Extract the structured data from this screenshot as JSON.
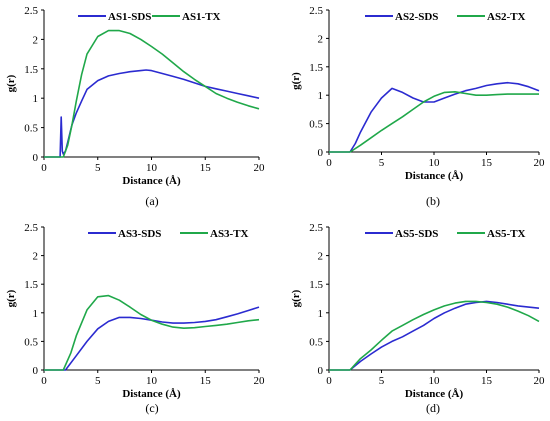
{
  "colors": {
    "sds": "#2b2bd0",
    "tx": "#20a84a"
  },
  "chart_data": [
    {
      "type": "line",
      "caption": "(a)",
      "xlabel": "Distance (Å)",
      "ylabel": "g(r)",
      "xlim": [
        0,
        20
      ],
      "ylim": [
        0,
        2.5
      ],
      "xticks": [
        "0",
        "5",
        "10",
        "15",
        "20"
      ],
      "yticks": [
        "0",
        "0.5",
        "1",
        "1.5",
        "2",
        "2.5"
      ],
      "grid": false,
      "legend": "top",
      "series": [
        {
          "name": "AS1-SDS",
          "color": "sds",
          "x": [
            0,
            1.5,
            1.6,
            1.7,
            1.8,
            2.0,
            2.2,
            2.4,
            2.6,
            3.0,
            3.5,
            4,
            5,
            6,
            7,
            8,
            9,
            9.5,
            10,
            11,
            12,
            13,
            14,
            15,
            16,
            17,
            18,
            19,
            20
          ],
          "y": [
            0,
            0,
            0.68,
            0.1,
            0.05,
            0.1,
            0.25,
            0.4,
            0.55,
            0.75,
            0.95,
            1.15,
            1.3,
            1.38,
            1.42,
            1.45,
            1.47,
            1.48,
            1.47,
            1.42,
            1.37,
            1.32,
            1.26,
            1.2,
            1.16,
            1.12,
            1.08,
            1.04,
            1.0
          ]
        },
        {
          "name": "AS1-TX",
          "color": "tx",
          "x": [
            0,
            1.8,
            2.2,
            2.6,
            3.0,
            3.5,
            4,
            5,
            6,
            7,
            8,
            9,
            10,
            11,
            12,
            13,
            14,
            15,
            16,
            17,
            18,
            19,
            20
          ],
          "y": [
            0,
            0,
            0.2,
            0.55,
            0.95,
            1.4,
            1.75,
            2.05,
            2.15,
            2.15,
            2.1,
            2.0,
            1.88,
            1.75,
            1.6,
            1.45,
            1.32,
            1.2,
            1.08,
            1.0,
            0.93,
            0.87,
            0.82
          ]
        }
      ]
    },
    {
      "type": "line",
      "caption": "(b)",
      "xlabel": "Distance (Å)",
      "ylabel": "g(r)",
      "xlim": [
        0,
        20
      ],
      "ylim": [
        0,
        2.5
      ],
      "xticks": [
        "0",
        "5",
        "10",
        "15",
        "20"
      ],
      "yticks": [
        "0",
        "0.5",
        "1",
        "1.5",
        "2",
        "2.5"
      ],
      "grid": false,
      "legend": "top",
      "series": [
        {
          "name": "AS2-SDS",
          "color": "sds",
          "x": [
            0,
            2.0,
            2.5,
            3,
            4,
            5,
            6,
            7,
            8,
            9,
            10,
            11,
            12,
            13,
            14,
            15,
            16,
            17,
            18,
            19,
            20
          ],
          "y": [
            0,
            0,
            0.15,
            0.35,
            0.7,
            0.95,
            1.12,
            1.05,
            0.95,
            0.88,
            0.88,
            0.95,
            1.02,
            1.08,
            1.12,
            1.17,
            1.2,
            1.22,
            1.2,
            1.15,
            1.08
          ]
        },
        {
          "name": "AS2-TX",
          "color": "tx",
          "x": [
            0,
            2.0,
            3,
            4,
            5,
            6,
            7,
            8,
            9,
            10,
            11,
            12,
            13,
            14,
            15,
            16,
            17,
            18,
            19,
            20
          ],
          "y": [
            0,
            0,
            0.12,
            0.25,
            0.38,
            0.5,
            0.62,
            0.75,
            0.88,
            0.98,
            1.05,
            1.06,
            1.03,
            1.0,
            1.0,
            1.01,
            1.02,
            1.02,
            1.02,
            1.02
          ]
        }
      ]
    },
    {
      "type": "line",
      "caption": "(c)",
      "xlabel": "Distance (Å)",
      "ylabel": "g(r)",
      "xlim": [
        0,
        20
      ],
      "ylim": [
        0,
        2.5
      ],
      "xticks": [
        "0",
        "5",
        "10",
        "15",
        "20"
      ],
      "yticks": [
        "0",
        "0.5",
        "1",
        "1.5",
        "2",
        "2.5"
      ],
      "grid": false,
      "legend": "top",
      "series": [
        {
          "name": "AS3-SDS",
          "color": "sds",
          "x": [
            0,
            2.0,
            3,
            4,
            5,
            6,
            7,
            8,
            9,
            10,
            11,
            12,
            13,
            14,
            15,
            16,
            17,
            18,
            19,
            20
          ],
          "y": [
            0,
            0,
            0.25,
            0.5,
            0.72,
            0.85,
            0.92,
            0.92,
            0.9,
            0.87,
            0.84,
            0.82,
            0.82,
            0.83,
            0.85,
            0.88,
            0.93,
            0.98,
            1.04,
            1.1
          ]
        },
        {
          "name": "AS3-TX",
          "color": "tx",
          "x": [
            0,
            1.8,
            2.5,
            3,
            4,
            5,
            6,
            7,
            8,
            9,
            10,
            11,
            12,
            13,
            14,
            15,
            16,
            17,
            18,
            19,
            20
          ],
          "y": [
            0,
            0,
            0.3,
            0.6,
            1.05,
            1.28,
            1.3,
            1.22,
            1.1,
            0.97,
            0.87,
            0.8,
            0.75,
            0.73,
            0.74,
            0.76,
            0.78,
            0.8,
            0.83,
            0.86,
            0.88
          ]
        }
      ]
    },
    {
      "type": "line",
      "caption": "(d)",
      "xlabel": "Distance (Å)",
      "ylabel": "g(r)",
      "xlim": [
        0,
        20
      ],
      "ylim": [
        0,
        2.5
      ],
      "xticks": [
        "0",
        "5",
        "10",
        "15",
        "20"
      ],
      "yticks": [
        "0",
        "0.5",
        "1",
        "1.5",
        "2",
        "2.5"
      ],
      "grid": false,
      "legend": "top",
      "series": [
        {
          "name": "AS5-SDS",
          "color": "sds",
          "x": [
            0,
            2.0,
            3,
            4,
            5,
            6,
            7,
            8,
            9,
            10,
            11,
            12,
            13,
            14,
            15,
            16,
            17,
            18,
            19,
            20
          ],
          "y": [
            0,
            0,
            0.15,
            0.28,
            0.4,
            0.5,
            0.58,
            0.68,
            0.78,
            0.9,
            1.0,
            1.08,
            1.15,
            1.18,
            1.2,
            1.18,
            1.15,
            1.12,
            1.1,
            1.08
          ]
        },
        {
          "name": "AS5-TX",
          "color": "tx",
          "x": [
            0,
            2.0,
            3,
            4,
            5,
            6,
            7,
            8,
            9,
            10,
            11,
            12,
            13,
            14,
            15,
            16,
            17,
            18,
            19,
            20
          ],
          "y": [
            0,
            0,
            0.2,
            0.35,
            0.52,
            0.68,
            0.78,
            0.88,
            0.97,
            1.05,
            1.12,
            1.17,
            1.2,
            1.2,
            1.18,
            1.15,
            1.1,
            1.03,
            0.95,
            0.85
          ]
        }
      ]
    }
  ]
}
